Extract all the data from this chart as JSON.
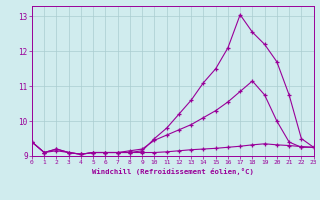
{
  "xlabel": "Windchill (Refroidissement éolien,°C)",
  "xlim": [
    0,
    23
  ],
  "ylim": [
    9,
    13.3
  ],
  "yticks": [
    9,
    10,
    11,
    12,
    13
  ],
  "xticks": [
    0,
    1,
    2,
    3,
    4,
    5,
    6,
    7,
    8,
    9,
    10,
    11,
    12,
    13,
    14,
    15,
    16,
    17,
    18,
    19,
    20,
    21,
    22,
    23
  ],
  "bg_color": "#d0ecee",
  "line_color": "#990099",
  "grid_color": "#aacdd0",
  "series1_x": [
    0,
    1,
    2,
    3,
    4,
    5,
    6,
    7,
    8,
    9,
    10,
    11,
    12,
    13,
    14,
    15,
    16,
    17,
    18,
    19,
    20,
    21,
    22,
    23
  ],
  "series1_y": [
    9.4,
    9.1,
    9.2,
    9.1,
    9.05,
    9.1,
    9.1,
    9.1,
    9.1,
    9.15,
    9.5,
    9.8,
    10.2,
    10.6,
    11.1,
    11.5,
    12.1,
    13.05,
    12.55,
    12.2,
    11.7,
    10.75,
    9.5,
    9.25
  ],
  "series2_x": [
    0,
    1,
    2,
    3,
    4,
    5,
    6,
    7,
    8,
    9,
    10,
    11,
    12,
    13,
    14,
    15,
    16,
    17,
    18,
    19,
    20,
    21,
    22,
    23
  ],
  "series2_y": [
    9.4,
    9.1,
    9.2,
    9.1,
    9.05,
    9.1,
    9.1,
    9.1,
    9.15,
    9.2,
    9.45,
    9.6,
    9.75,
    9.9,
    10.1,
    10.3,
    10.55,
    10.85,
    11.15,
    10.75,
    10.0,
    9.4,
    9.25,
    9.25
  ],
  "series3_x": [
    0,
    1,
    2,
    3,
    4,
    5,
    6,
    7,
    8,
    9,
    10,
    11,
    12,
    13,
    14,
    15,
    16,
    17,
    18,
    19,
    20,
    21,
    22,
    23
  ],
  "series3_y": [
    9.4,
    9.1,
    9.15,
    9.1,
    9.05,
    9.1,
    9.1,
    9.1,
    9.1,
    9.1,
    9.1,
    9.12,
    9.15,
    9.18,
    9.2,
    9.22,
    9.25,
    9.28,
    9.32,
    9.35,
    9.32,
    9.3,
    9.27,
    9.25
  ]
}
